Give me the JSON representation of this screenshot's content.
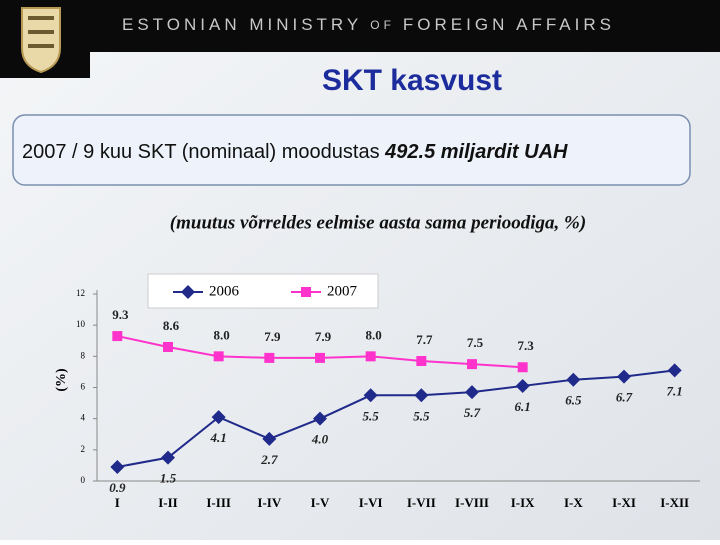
{
  "header": {
    "org_1": "ESTONIAN MINISTRY",
    "org_of": "OF",
    "org_2": "FOREIGN AFFAIRS"
  },
  "box": {
    "text": "2007 / 9 kuu SKT (nominaal) moodustas",
    "highlight": "492.5 miljardit UAH"
  },
  "chart_data": {
    "type": "line",
    "title": "SKT kasvust",
    "subtitle": "(muutus võrreldes eelmise aasta sama perioodiga, %)",
    "ylabel": "(%)",
    "categories": [
      "I",
      "I-II",
      "I-III",
      "I-IV",
      "I-V",
      "I-VI",
      "I-VII",
      "I-VIII",
      "I-IX",
      "I-X",
      "I-XI",
      "I-XII"
    ],
    "series": [
      {
        "name": "2006",
        "color": "#1f2a8a",
        "marker": "diamond",
        "values": [
          0.9,
          1.5,
          4.1,
          2.7,
          4.0,
          5.5,
          5.5,
          5.7,
          6.1,
          6.5,
          6.7,
          7.1
        ],
        "value_labels": [
          "0.9",
          "1.5",
          "4.1",
          "2.7",
          "4.0",
          "5.5",
          "5.5",
          "5.7",
          "6.1",
          "6.5",
          "6.7",
          "7.1"
        ]
      },
      {
        "name": "2007",
        "color": "#ff33cc",
        "marker": "square",
        "values": [
          9.3,
          8.6,
          8.0,
          7.9,
          7.9,
          8.0,
          7.7,
          7.5,
          7.3,
          null,
          null,
          null
        ],
        "value_labels": [
          "9.3",
          "8.6",
          "8.0",
          "7.9",
          "7.9",
          "8.0",
          "7.7",
          "7.5",
          "7.3",
          null,
          null,
          null
        ]
      }
    ],
    "ylim": [
      0,
      12
    ],
    "yticks": [
      0,
      2,
      4,
      6,
      8,
      10,
      12
    ],
    "legend": "top-left"
  }
}
